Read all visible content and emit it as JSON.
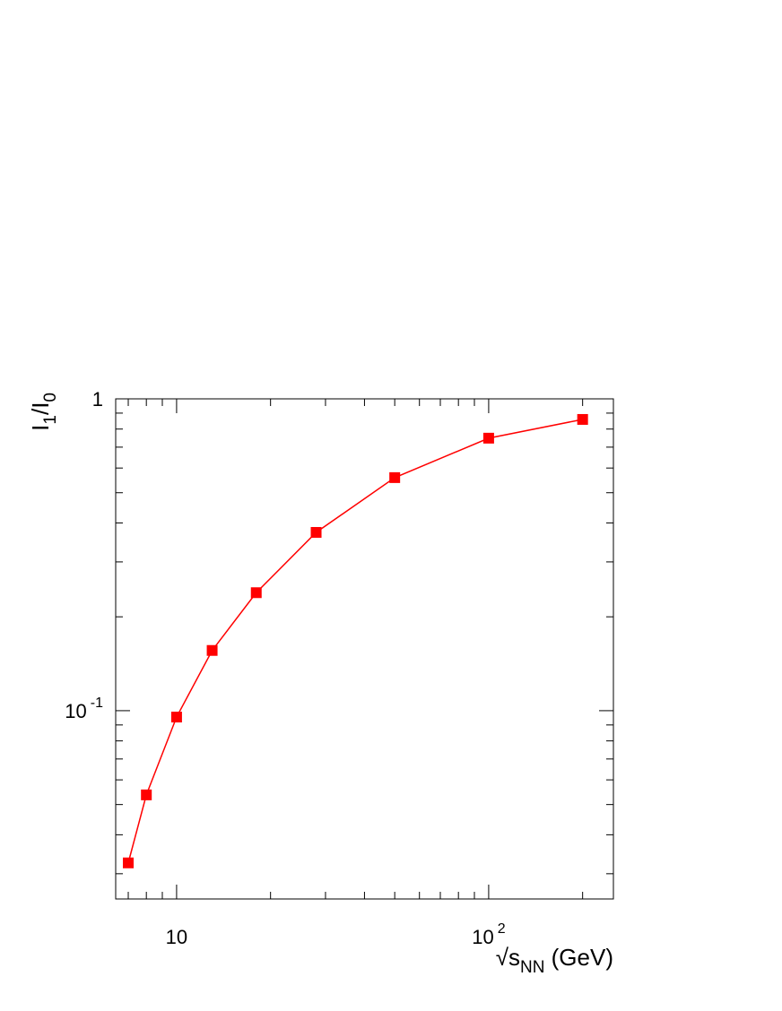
{
  "chart_data": {
    "type": "line",
    "xlabel": [
      {
        "text": "√s"
      },
      {
        "sub": "NN"
      },
      {
        "text": " (GeV)"
      }
    ],
    "ylabel": [
      {
        "text": "I"
      },
      {
        "sub": "1"
      },
      {
        "text": "/I"
      },
      {
        "sub": "0"
      }
    ],
    "x": [
      7,
      8,
      10,
      13,
      18,
      28,
      50,
      100,
      200
    ],
    "series": [
      {
        "color": "#ff0000",
        "values": [
          0.0325,
          0.0537,
          0.0954,
          0.156,
          0.239,
          0.373,
          0.559,
          0.748,
          0.859
        ]
      }
    ],
    "xlog": true,
    "ylog": true,
    "xlim": [
      6.38,
      251
    ],
    "ylim": [
      0.0249,
      1
    ],
    "xticks": [
      10,
      {
        "value": 100,
        "label": "10",
        "exponent": "2"
      }
    ],
    "yticks": [
      {
        "value": 0.1,
        "label": "10",
        "exponent": "-1"
      },
      1
    ],
    "xminorticks": [
      7,
      8,
      9,
      20,
      30,
      40,
      50,
      60,
      70,
      80,
      90,
      200
    ],
    "yminorticks": [
      0.03,
      0.04,
      0.05,
      0.06,
      0.07,
      0.08,
      0.09,
      0.2,
      0.3,
      0.4,
      0.5,
      0.6,
      0.7,
      0.8,
      0.9
    ]
  }
}
